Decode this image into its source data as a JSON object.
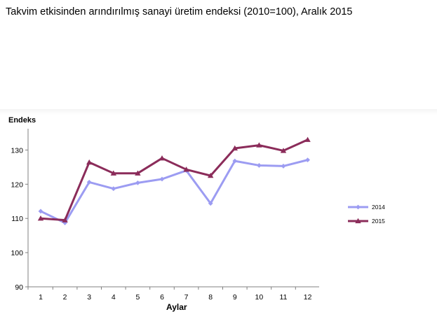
{
  "title": "Takvim etkisinden arındırılmış sanayi üretim endeksi  (2010=100), Aralık 2015",
  "chart_data": {
    "type": "line",
    "ylabel": "Endeks",
    "xlabel": "Aylar",
    "categories": [
      "1",
      "2",
      "3",
      "4",
      "5",
      "6",
      "7",
      "8",
      "9",
      "10",
      "11",
      "12"
    ],
    "ylim": [
      90,
      135
    ],
    "yticks": [
      90,
      100,
      110,
      120,
      130
    ],
    "legend_position": "right",
    "series": [
      {
        "name": "2014",
        "color": "#9c9cf2",
        "marker": "diamond",
        "values": [
          112.1,
          108.7,
          120.6,
          118.7,
          120.4,
          121.5,
          124.0,
          114.4,
          126.8,
          125.5,
          125.3,
          127.1
        ]
      },
      {
        "name": "2015",
        "color": "#8b2c5a",
        "marker": "triangle",
        "values": [
          110.0,
          109.5,
          126.4,
          123.2,
          123.2,
          127.6,
          124.3,
          122.5,
          130.5,
          131.4,
          129.8,
          133.0
        ]
      }
    ]
  }
}
